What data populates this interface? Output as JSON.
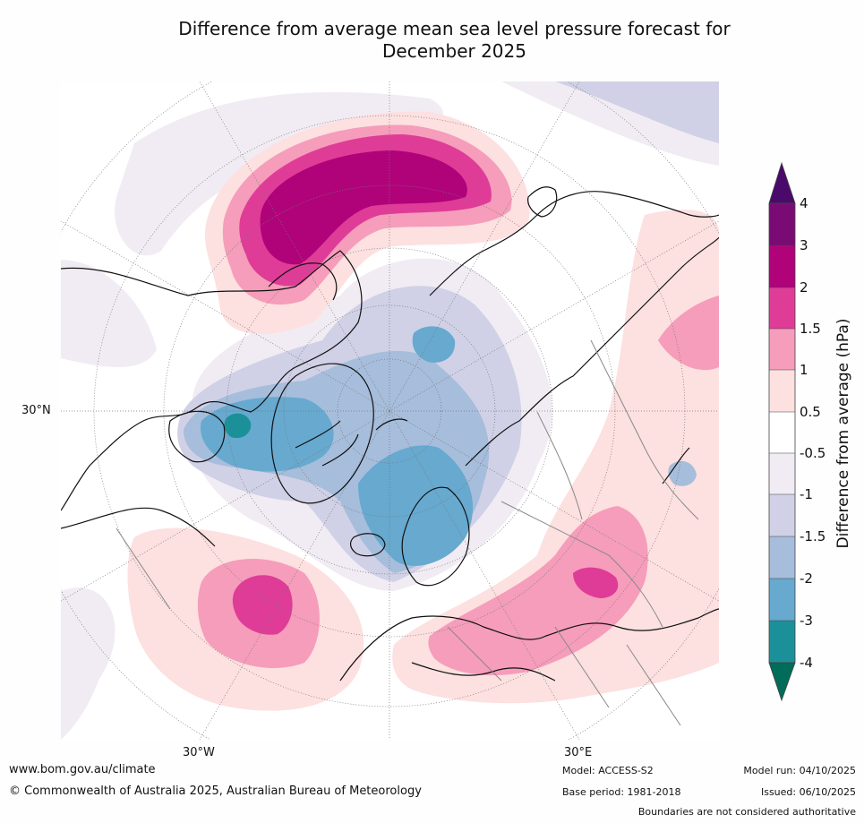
{
  "title": {
    "line1": "Difference from average mean sea level pressure forecast for",
    "line2": "December 2025"
  },
  "map": {
    "projection": "north-polar-stereographic",
    "lat_labels": [
      "30°N"
    ],
    "lon_labels": [
      "30°W",
      "30°E"
    ]
  },
  "legend": {
    "title": "Difference from average (hPa)",
    "ticks": [
      "4",
      "3",
      "2",
      "1.5",
      "1",
      "0.5",
      "-0.5",
      "-1",
      "-1.5",
      "-2",
      "-3",
      "-4"
    ],
    "colors": {
      "above_4": "#4a0a6b",
      "3_to_4": "#7a0b75",
      "2_to_3": "#b0037a",
      "1.5_to_2": "#df3c98",
      "1_to_1.5": "#f59dba",
      "0.5_to_1": "#fde0e0",
      "-0.5_to_0.5": "#ffffff",
      "-1_to_-0.5": "#f1ecf3",
      "-1.5_to_-1": "#d0d1e6",
      "-2_to_-1.5": "#a6bddb",
      "-3_to_-2": "#67a9cf",
      "-4_to_-3": "#1c9099",
      "below_-4": "#016c59"
    }
  },
  "footer": {
    "website": "www.bom.gov.au/climate",
    "copyright": "© Commonwealth of Australia 2025, Australian Bureau of Meteorology",
    "model": "Model: ACCESS-S2",
    "base_period": "Base period: 1981-2018",
    "model_run": "Model run: 04/10/2025",
    "issued": "Issued: 06/10/2025",
    "disclaimer": "Boundaries are not considered authoritative"
  }
}
